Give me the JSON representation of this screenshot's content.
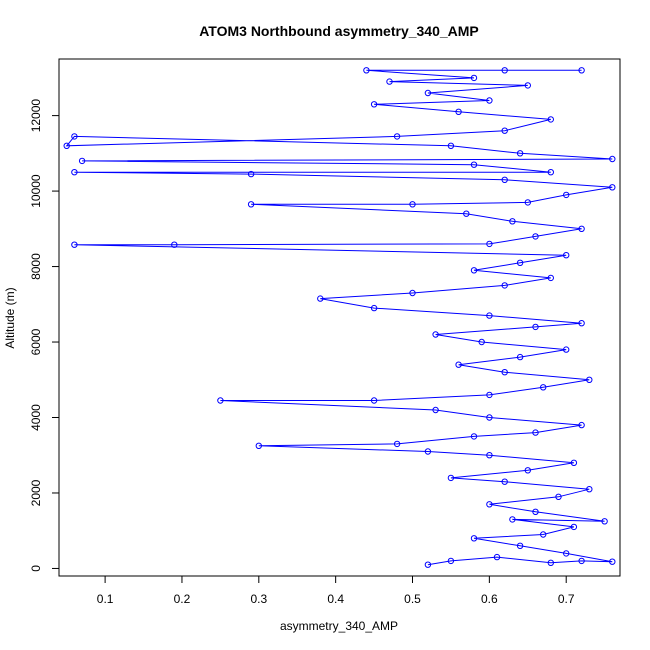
{
  "chart_data": {
    "type": "line",
    "title": "ATOM3 Northbound asymmetry_340_AMP",
    "xlabel": "asymmetry_340_AMP",
    "ylabel": "Altitude (m)",
    "xlim": [
      0.04,
      0.77
    ],
    "ylim": [
      -200,
      13500
    ],
    "xticks": [
      0.1,
      0.2,
      0.3,
      0.4,
      0.5,
      0.6,
      0.7
    ],
    "yticks": [
      0,
      2000,
      4000,
      6000,
      8000,
      10000,
      12000
    ],
    "marker": "open-circle",
    "series": [
      {
        "color": "#0000ff",
        "points": [
          [
            0.52,
            100
          ],
          [
            0.55,
            200
          ],
          [
            0.61,
            300
          ],
          [
            0.68,
            150
          ],
          [
            0.72,
            200
          ],
          [
            0.76,
            180
          ],
          [
            0.7,
            400
          ],
          [
            0.64,
            600
          ],
          [
            0.58,
            800
          ],
          [
            0.67,
            900
          ],
          [
            0.71,
            1100
          ],
          [
            0.63,
            1300
          ],
          [
            0.75,
            1250
          ],
          [
            0.66,
            1500
          ],
          [
            0.6,
            1700
          ],
          [
            0.69,
            1900
          ],
          [
            0.73,
            2100
          ],
          [
            0.62,
            2300
          ],
          [
            0.55,
            2400
          ],
          [
            0.65,
            2600
          ],
          [
            0.71,
            2800
          ],
          [
            0.6,
            3000
          ],
          [
            0.52,
            3100
          ],
          [
            0.3,
            3250
          ],
          [
            0.48,
            3300
          ],
          [
            0.58,
            3500
          ],
          [
            0.66,
            3600
          ],
          [
            0.72,
            3800
          ],
          [
            0.6,
            4000
          ],
          [
            0.53,
            4200
          ],
          [
            0.25,
            4450
          ],
          [
            0.45,
            4450
          ],
          [
            0.6,
            4600
          ],
          [
            0.67,
            4800
          ],
          [
            0.73,
            5000
          ],
          [
            0.62,
            5200
          ],
          [
            0.56,
            5400
          ],
          [
            0.64,
            5600
          ],
          [
            0.7,
            5800
          ],
          [
            0.59,
            6000
          ],
          [
            0.53,
            6200
          ],
          [
            0.66,
            6400
          ],
          [
            0.72,
            6500
          ],
          [
            0.6,
            6700
          ],
          [
            0.45,
            6900
          ],
          [
            0.38,
            7150
          ],
          [
            0.5,
            7300
          ],
          [
            0.62,
            7500
          ],
          [
            0.68,
            7700
          ],
          [
            0.58,
            7900
          ],
          [
            0.64,
            8100
          ],
          [
            0.7,
            8300
          ],
          [
            0.06,
            8580
          ],
          [
            0.19,
            8580
          ],
          [
            0.6,
            8600
          ],
          [
            0.66,
            8800
          ],
          [
            0.72,
            9000
          ],
          [
            0.63,
            9200
          ],
          [
            0.57,
            9400
          ],
          [
            0.29,
            9650
          ],
          [
            0.5,
            9650
          ],
          [
            0.65,
            9700
          ],
          [
            0.7,
            9900
          ],
          [
            0.76,
            10100
          ],
          [
            0.62,
            10300
          ],
          [
            0.29,
            10450
          ],
          [
            0.06,
            10500
          ],
          [
            0.68,
            10500
          ],
          [
            0.58,
            10700
          ],
          [
            0.07,
            10800
          ],
          [
            0.76,
            10850
          ],
          [
            0.64,
            11000
          ],
          [
            0.55,
            11200
          ],
          [
            0.06,
            11450
          ],
          [
            0.05,
            11200
          ],
          [
            0.48,
            11450
          ],
          [
            0.62,
            11600
          ],
          [
            0.68,
            11900
          ],
          [
            0.56,
            12100
          ],
          [
            0.45,
            12300
          ],
          [
            0.6,
            12400
          ],
          [
            0.52,
            12600
          ],
          [
            0.65,
            12800
          ],
          [
            0.47,
            12900
          ],
          [
            0.58,
            13000
          ],
          [
            0.44,
            13200
          ],
          [
            0.62,
            13200
          ],
          [
            0.72,
            13200
          ]
        ]
      }
    ]
  }
}
